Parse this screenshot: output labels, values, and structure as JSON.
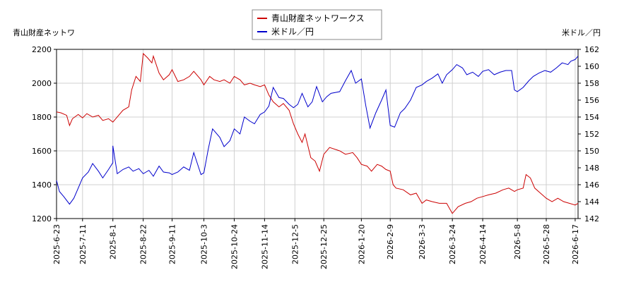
{
  "chart_data": {
    "type": "line",
    "left_axis_label": "青山財産ネットワ",
    "right_axis_label": "米ドル／円",
    "legend": [
      {
        "label": "青山財産ネットワークス",
        "color": "#cc0000"
      },
      {
        "label": "米ドル／円",
        "color": "#0000cc"
      }
    ],
    "legend_position": "top-center",
    "grid": true,
    "x_start": "2025-6-23",
    "x_end": "2026-6-19",
    "x_ticks": [
      "2025-6-23",
      "2025-7-11",
      "2025-8-1",
      "2025-8-22",
      "2025-9-11",
      "2025-10-3",
      "2025-10-24",
      "2025-11-14",
      "2025-12-5",
      "2025-12-25",
      "2026-1-20",
      "2026-2-9",
      "2026-3-3",
      "2026-3-24",
      "2026-4-14",
      "2026-5-8",
      "2026-5-28",
      "2026-6-17"
    ],
    "y_left": {
      "min": 1200,
      "max": 2200,
      "ticks": [
        1200,
        1400,
        1600,
        1800,
        2000,
        2200
      ]
    },
    "y_right": {
      "min": 142,
      "max": 162,
      "ticks": [
        142,
        144,
        146,
        148,
        150,
        152,
        154,
        156,
        158,
        160,
        162
      ]
    },
    "series": [
      {
        "name": "青山財産ネットワークス",
        "axis": "left",
        "color": "#cc0000",
        "points": [
          [
            "2025-6-23",
            1830
          ],
          [
            "2025-6-26",
            1825
          ],
          [
            "2025-6-30",
            1810
          ],
          [
            "2025-7-2",
            1750
          ],
          [
            "2025-7-4",
            1790
          ],
          [
            "2025-7-8",
            1815
          ],
          [
            "2025-7-11",
            1795
          ],
          [
            "2025-7-14",
            1820
          ],
          [
            "2025-7-18",
            1800
          ],
          [
            "2025-7-22",
            1810
          ],
          [
            "2025-7-25",
            1780
          ],
          [
            "2025-7-29",
            1790
          ],
          [
            "2025-8-1",
            1770
          ],
          [
            "2025-8-5",
            1810
          ],
          [
            "2025-8-8",
            1840
          ],
          [
            "2025-8-12",
            1860
          ],
          [
            "2025-8-14",
            1960
          ],
          [
            "2025-8-17",
            2040
          ],
          [
            "2025-8-20",
            2010
          ],
          [
            "2025-8-22",
            2175
          ],
          [
            "2025-8-25",
            2150
          ],
          [
            "2025-8-28",
            2120
          ],
          [
            "2025-8-29",
            2160
          ],
          [
            "2025-9-2",
            2060
          ],
          [
            "2025-9-5",
            2020
          ],
          [
            "2025-9-9",
            2050
          ],
          [
            "2025-9-11",
            2080
          ],
          [
            "2025-9-15",
            2010
          ],
          [
            "2025-9-19",
            2020
          ],
          [
            "2025-9-23",
            2040
          ],
          [
            "2025-9-26",
            2070
          ],
          [
            "2025-10-1",
            2020
          ],
          [
            "2025-10-3",
            1990
          ],
          [
            "2025-10-7",
            2040
          ],
          [
            "2025-10-10",
            2020
          ],
          [
            "2025-10-14",
            2010
          ],
          [
            "2025-10-17",
            2020
          ],
          [
            "2025-10-21",
            2000
          ],
          [
            "2025-10-24",
            2040
          ],
          [
            "2025-10-28",
            2020
          ],
          [
            "2025-10-31",
            1990
          ],
          [
            "2025-11-4",
            2000
          ],
          [
            "2025-11-7",
            1990
          ],
          [
            "2025-11-11",
            1980
          ],
          [
            "2025-11-14",
            1990
          ],
          [
            "2025-11-17",
            1930
          ],
          [
            "2025-11-20",
            1890
          ],
          [
            "2025-11-24",
            1860
          ],
          [
            "2025-11-27",
            1880
          ],
          [
            "2025-12-1",
            1840
          ],
          [
            "2025-12-4",
            1760
          ],
          [
            "2025-12-7",
            1700
          ],
          [
            "2025-12-10",
            1650
          ],
          [
            "2025-12-12",
            1700
          ],
          [
            "2025-12-16",
            1560
          ],
          [
            "2025-12-19",
            1540
          ],
          [
            "2025-12-22",
            1480
          ],
          [
            "2025-12-25",
            1580
          ],
          [
            "2025-12-29",
            1620
          ],
          [
            "2026-1-5",
            1600
          ],
          [
            "2026-1-9",
            1580
          ],
          [
            "2026-1-14",
            1590
          ],
          [
            "2026-1-17",
            1560
          ],
          [
            "2026-1-20",
            1520
          ],
          [
            "2026-1-24",
            1510
          ],
          [
            "2026-1-27",
            1480
          ],
          [
            "2026-1-31",
            1520
          ],
          [
            "2026-2-3",
            1510
          ],
          [
            "2026-2-6",
            1490
          ],
          [
            "2026-2-9",
            1480
          ],
          [
            "2026-2-11",
            1400
          ],
          [
            "2026-2-13",
            1380
          ],
          [
            "2026-2-18",
            1370
          ],
          [
            "2026-2-23",
            1340
          ],
          [
            "2026-2-27",
            1350
          ],
          [
            "2026-3-3",
            1290
          ],
          [
            "2026-3-6",
            1310
          ],
          [
            "2026-3-10",
            1300
          ],
          [
            "2026-3-15",
            1290
          ],
          [
            "2026-3-20",
            1290
          ],
          [
            "2026-3-24",
            1230
          ],
          [
            "2026-3-28",
            1270
          ],
          [
            "2026-4-2",
            1290
          ],
          [
            "2026-4-6",
            1300
          ],
          [
            "2026-4-10",
            1320
          ],
          [
            "2026-4-14",
            1330
          ],
          [
            "2026-4-18",
            1340
          ],
          [
            "2026-4-23",
            1350
          ],
          [
            "2026-4-28",
            1370
          ],
          [
            "2026-5-2",
            1380
          ],
          [
            "2026-5-6",
            1360
          ],
          [
            "2026-5-8",
            1370
          ],
          [
            "2026-5-12",
            1380
          ],
          [
            "2026-5-14",
            1460
          ],
          [
            "2026-5-17",
            1440
          ],
          [
            "2026-5-20",
            1380
          ],
          [
            "2026-5-24",
            1350
          ],
          [
            "2026-5-28",
            1320
          ],
          [
            "2026-6-1",
            1300
          ],
          [
            "2026-6-5",
            1320
          ],
          [
            "2026-6-9",
            1300
          ],
          [
            "2026-6-13",
            1290
          ],
          [
            "2026-6-17",
            1280
          ],
          [
            "2026-6-19",
            1290
          ]
        ]
      },
      {
        "name": "米ドル／円",
        "axis": "right",
        "color": "#0000cc",
        "points": [
          [
            "2025-6-23",
            146.5
          ],
          [
            "2025-6-25",
            145.2
          ],
          [
            "2025-6-28",
            144.6
          ],
          [
            "2025-7-2",
            143.7
          ],
          [
            "2025-7-5",
            144.4
          ],
          [
            "2025-7-8",
            145.6
          ],
          [
            "2025-7-11",
            146.8
          ],
          [
            "2025-7-15",
            147.5
          ],
          [
            "2025-7-18",
            148.5
          ],
          [
            "2025-7-22",
            147.6
          ],
          [
            "2025-7-25",
            146.8
          ],
          [
            "2025-7-29",
            147.8
          ],
          [
            "2025-8-1",
            148.6
          ],
          [
            "2025-8-1",
            150.6
          ],
          [
            "2025-8-4",
            147.3
          ],
          [
            "2025-8-8",
            147.8
          ],
          [
            "2025-8-12",
            148.1
          ],
          [
            "2025-8-15",
            147.6
          ],
          [
            "2025-8-19",
            147.9
          ],
          [
            "2025-8-22",
            147.3
          ],
          [
            "2025-8-26",
            147.7
          ],
          [
            "2025-8-29",
            147.0
          ],
          [
            "2025-9-2",
            148.2
          ],
          [
            "2025-9-5",
            147.5
          ],
          [
            "2025-9-9",
            147.4
          ],
          [
            "2025-9-11",
            147.2
          ],
          [
            "2025-9-15",
            147.5
          ],
          [
            "2025-9-19",
            148.1
          ],
          [
            "2025-9-23",
            147.7
          ],
          [
            "2025-9-26",
            149.8
          ],
          [
            "2025-10-1",
            147.2
          ],
          [
            "2025-10-3",
            147.4
          ],
          [
            "2025-10-6",
            150.2
          ],
          [
            "2025-10-9",
            152.6
          ],
          [
            "2025-10-14",
            151.6
          ],
          [
            "2025-10-17",
            150.5
          ],
          [
            "2025-10-21",
            151.2
          ],
          [
            "2025-10-24",
            152.6
          ],
          [
            "2025-10-28",
            152.0
          ],
          [
            "2025-10-31",
            154.0
          ],
          [
            "2025-11-4",
            153.5
          ],
          [
            "2025-11-7",
            153.2
          ],
          [
            "2025-11-11",
            154.3
          ],
          [
            "2025-11-14",
            154.6
          ],
          [
            "2025-11-17",
            155.3
          ],
          [
            "2025-11-20",
            157.5
          ],
          [
            "2025-11-24",
            156.3
          ],
          [
            "2025-11-27",
            156.2
          ],
          [
            "2025-12-1",
            155.5
          ],
          [
            "2025-12-4",
            155.1
          ],
          [
            "2025-12-7",
            155.5
          ],
          [
            "2025-12-10",
            156.8
          ],
          [
            "2025-12-14",
            155.2
          ],
          [
            "2025-12-17",
            155.8
          ],
          [
            "2025-12-20",
            157.6
          ],
          [
            "2025-12-24",
            155.8
          ],
          [
            "2025-12-27",
            156.4
          ],
          [
            "2025-12-30",
            156.8
          ],
          [
            "2026-1-5",
            157.0
          ],
          [
            "2026-1-9",
            158.3
          ],
          [
            "2026-1-13",
            159.5
          ],
          [
            "2026-1-16",
            158.0
          ],
          [
            "2026-1-20",
            158.5
          ],
          [
            "2026-1-23",
            155.4
          ],
          [
            "2026-1-26",
            152.7
          ],
          [
            "2026-1-30",
            154.5
          ],
          [
            "2026-2-3",
            156.0
          ],
          [
            "2026-2-6",
            157.2
          ],
          [
            "2026-2-9",
            153.0
          ],
          [
            "2026-2-12",
            152.8
          ],
          [
            "2026-2-16",
            154.5
          ],
          [
            "2026-2-19",
            155.0
          ],
          [
            "2026-2-23",
            156.0
          ],
          [
            "2026-2-27",
            157.5
          ],
          [
            "2026-3-3",
            157.8
          ],
          [
            "2026-3-6",
            158.2
          ],
          [
            "2026-3-10",
            158.6
          ],
          [
            "2026-3-14",
            159.1
          ],
          [
            "2026-3-17",
            158.0
          ],
          [
            "2026-3-20",
            159.0
          ],
          [
            "2026-3-24",
            159.6
          ],
          [
            "2026-3-27",
            160.2
          ],
          [
            "2026-3-31",
            159.8
          ],
          [
            "2026-4-3",
            159.0
          ],
          [
            "2026-4-7",
            159.3
          ],
          [
            "2026-4-11",
            158.8
          ],
          [
            "2026-4-14",
            159.4
          ],
          [
            "2026-4-18",
            159.6
          ],
          [
            "2026-4-22",
            159.0
          ],
          [
            "2026-4-26",
            159.3
          ],
          [
            "2026-4-30",
            159.5
          ],
          [
            "2026-5-4",
            159.5
          ],
          [
            "2026-5-6",
            157.2
          ],
          [
            "2026-5-8",
            157.0
          ],
          [
            "2026-5-12",
            157.5
          ],
          [
            "2026-5-16",
            158.3
          ],
          [
            "2026-5-19",
            158.8
          ],
          [
            "2026-5-23",
            159.2
          ],
          [
            "2026-5-27",
            159.5
          ],
          [
            "2026-5-31",
            159.3
          ],
          [
            "2026-6-4",
            159.8
          ],
          [
            "2026-6-8",
            160.4
          ],
          [
            "2026-6-12",
            160.2
          ],
          [
            "2026-6-14",
            160.6
          ],
          [
            "2026-6-17",
            160.8
          ],
          [
            "2026-6-19",
            161.2
          ]
        ]
      }
    ]
  }
}
